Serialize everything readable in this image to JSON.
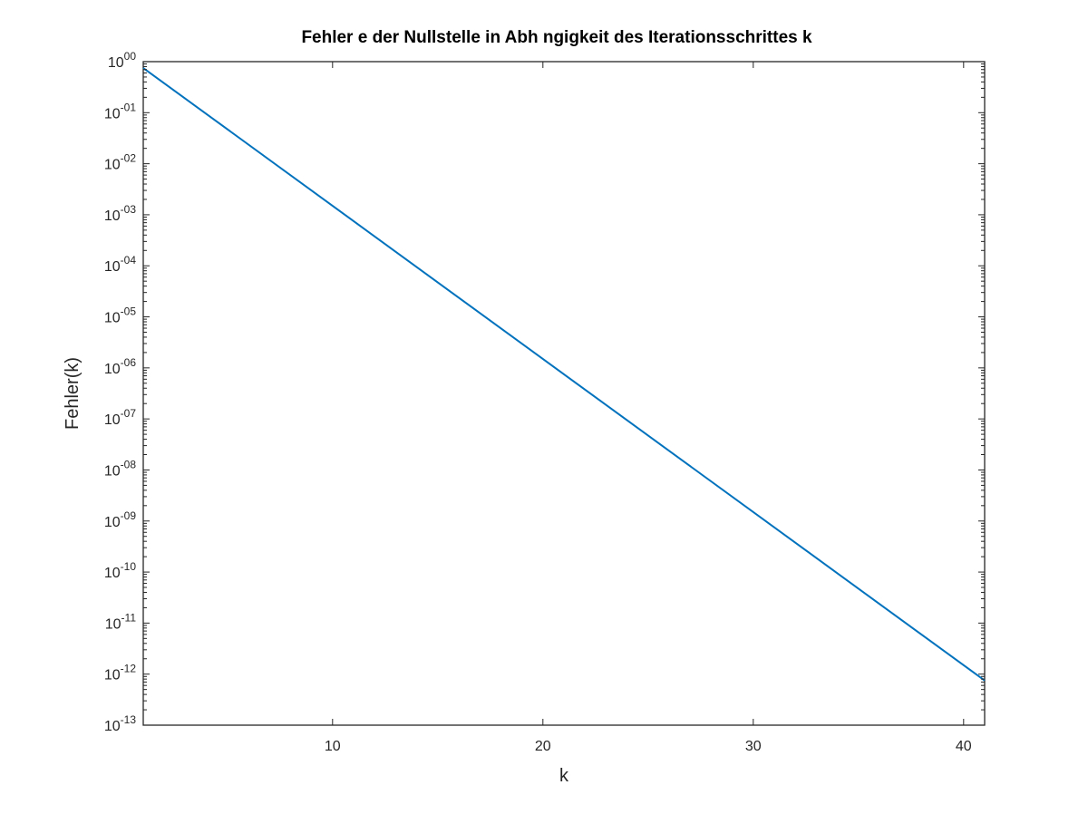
{
  "chart_data": {
    "type": "line",
    "title": "Fehler e der Nullstelle in Abh ngigkeit des Iterationsschrittes k",
    "xlabel": "k",
    "ylabel": "Fehler(k)",
    "xlim": [
      1,
      41
    ],
    "ylim": [
      1e-13,
      1
    ],
    "yscale": "log",
    "grid": false,
    "x_ticks": [
      10,
      20,
      30,
      40
    ],
    "x_tick_labels": [
      "10",
      "20",
      "30",
      "40"
    ],
    "y_ticks": [
      0,
      -1,
      -2,
      -3,
      -4,
      -5,
      -6,
      -7,
      -8,
      -9,
      -10,
      -11,
      -12,
      -13
    ],
    "y_tick_labels": [
      {
        "base": "10",
        "exp": "00"
      },
      {
        "base": "10",
        "exp": "-01"
      },
      {
        "base": "10",
        "exp": "-02"
      },
      {
        "base": "10",
        "exp": "-03"
      },
      {
        "base": "10",
        "exp": "-04"
      },
      {
        "base": "10",
        "exp": "-05"
      },
      {
        "base": "10",
        "exp": "-06"
      },
      {
        "base": "10",
        "exp": "-07"
      },
      {
        "base": "10",
        "exp": "-08"
      },
      {
        "base": "10",
        "exp": "-09"
      },
      {
        "base": "10",
        "exp": "-10"
      },
      {
        "base": "10",
        "exp": "-11"
      },
      {
        "base": "10",
        "exp": "-12"
      },
      {
        "base": "10",
        "exp": "-13"
      }
    ],
    "series": [
      {
        "color": "#0072bd",
        "x": [
          1,
          41
        ],
        "y": [
          0.75,
          7.5e-13
        ]
      }
    ]
  }
}
